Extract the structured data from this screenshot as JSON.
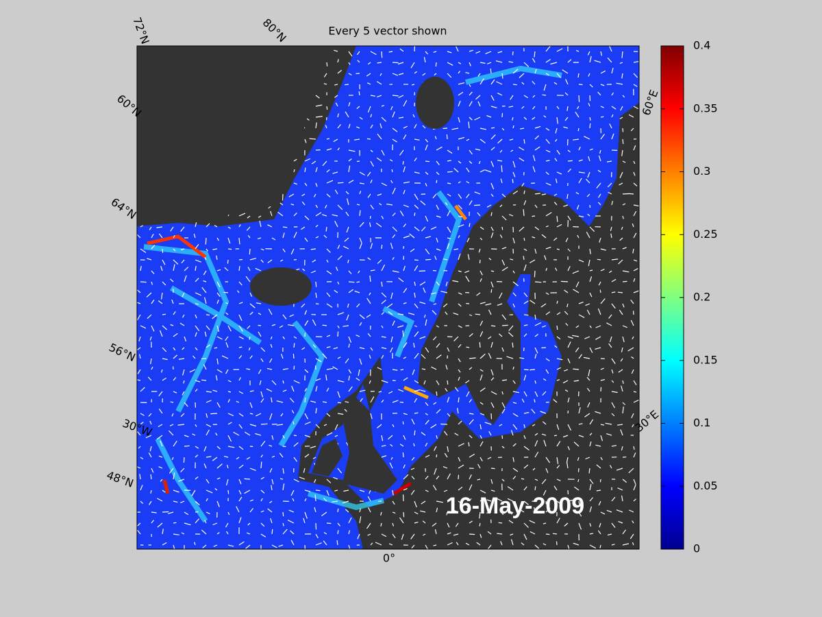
{
  "map": {
    "title": "Every 5 vector shown",
    "date": "16-May-2009",
    "graticule_labels": [
      "72°N",
      "80°N",
      "60°N",
      "64°N",
      "56°N",
      "30°W",
      "48°N",
      "0°",
      "60°E",
      "30°E"
    ],
    "colorbar": {
      "lim": [
        0,
        0.4
      ],
      "ticks": [
        0,
        0.05,
        0.1,
        0.15,
        0.2,
        0.25,
        0.3,
        0.35,
        0.4
      ]
    }
  }
}
